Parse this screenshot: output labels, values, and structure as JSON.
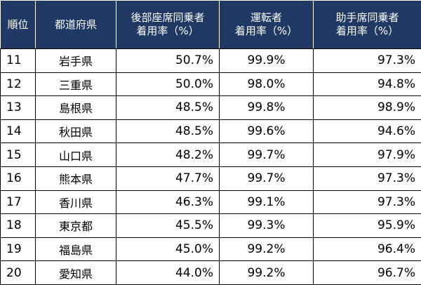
{
  "table": {
    "header": [
      [
        "順位"
      ],
      [
        "都道府県"
      ],
      [
        "後部座席同乗者",
        "着用率（%）"
      ],
      [
        "運転者",
        "着用率（%）"
      ],
      [
        "助手席同乗者",
        "着用率（%）"
      ]
    ],
    "rows": [
      [
        11,
        "岩手県",
        "50.7%",
        "99.9%",
        "97.3%"
      ],
      [
        12,
        "三重県",
        "50.0%",
        "98.0%",
        "94.8%"
      ],
      [
        13,
        "島根県",
        "48.5%",
        "99.8%",
        "98.9%"
      ],
      [
        14,
        "秋田県",
        "48.5%",
        "99.6%",
        "94.6%"
      ],
      [
        15,
        "山口県",
        "48.2%",
        "99.7%",
        "97.9%"
      ],
      [
        16,
        "熊本県",
        "47.7%",
        "99.7%",
        "97.3%"
      ],
      [
        17,
        "香川県",
        "46.3%",
        "99.1%",
        "97.3%"
      ],
      [
        18,
        "東京都",
        "45.5%",
        "99.3%",
        "95.9%"
      ],
      [
        19,
        "福島県",
        "45.0%",
        "99.2%",
        "96.4%"
      ],
      [
        20,
        "愛知県",
        "44.0%",
        "99.2%",
        "96.7%"
      ]
    ]
  }
}
